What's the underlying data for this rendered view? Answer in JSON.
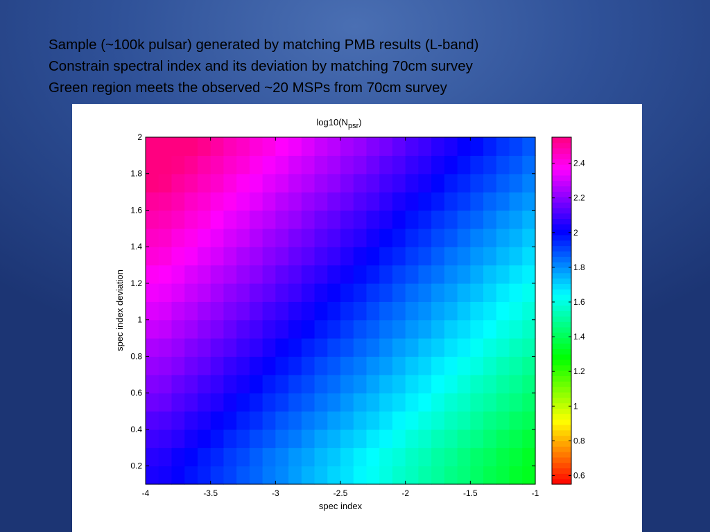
{
  "slide": {
    "bullets": [
      "Sample (~100k pulsar) generated by matching PMB results  (L-band)",
      "Constrain spectral index and its deviation by matching 70cm survey",
      "Green region meets the observed ~20 MSPs from 70cm survey"
    ]
  },
  "chart_data": {
    "type": "heatmap",
    "title": "log10(N",
    "title_subscript": "psr",
    "title_close": ")",
    "xlabel": "spec index",
    "ylabel": "spec index deviation",
    "xlim": [
      -4,
      -1
    ],
    "ylim": [
      0.1,
      2.0
    ],
    "x_ticks": [
      "-4",
      "-3.5",
      "-3",
      "-2.5",
      "-2",
      "-1.5",
      "-1"
    ],
    "x_tick_values": [
      -4,
      -3.5,
      -3,
      -2.5,
      -2,
      -1.5,
      -1
    ],
    "y_ticks": [
      "0.2",
      "0.4",
      "0.6",
      "0.8",
      "1",
      "1.2",
      "1.4",
      "1.6",
      "1.8",
      "2"
    ],
    "y_tick_values": [
      0.2,
      0.4,
      0.6,
      0.8,
      1.0,
      1.2,
      1.4,
      1.6,
      1.8,
      2.0
    ],
    "x_edges": [
      -4.0,
      -3.9,
      -3.8,
      -3.7,
      -3.6,
      -3.5,
      -3.4,
      -3.3,
      -3.2,
      -3.1,
      -3.0,
      -2.9,
      -2.8,
      -2.7,
      -2.6,
      -2.5,
      -2.4,
      -2.3,
      -2.2,
      -2.1,
      -2.0,
      -1.9,
      -1.8,
      -1.7,
      -1.6,
      -1.5,
      -1.4,
      -1.3,
      -1.2,
      -1.1,
      -1.0
    ],
    "y_edges": [
      0.1,
      0.2,
      0.3,
      0.4,
      0.5,
      0.6,
      0.7,
      0.8,
      0.9,
      1.0,
      1.1,
      1.2,
      1.3,
      1.4,
      1.5,
      1.6,
      1.7,
      1.8,
      1.9,
      2.0
    ],
    "z_rows_bottom_to_top": [
      [
        2.04,
        2.03,
        2.01,
        1.98,
        1.96,
        1.93,
        1.91,
        1.88,
        1.86,
        1.83,
        1.81,
        1.78,
        1.75,
        1.73,
        1.7,
        1.68,
        1.65,
        1.63,
        1.6,
        1.57,
        1.55,
        1.52,
        1.5,
        1.47,
        1.45,
        1.42,
        1.39,
        1.37,
        1.34,
        1.32
      ],
      [
        2.06,
        2.05,
        2.02,
        2.0,
        1.97,
        1.95,
        1.92,
        1.9,
        1.87,
        1.84,
        1.82,
        1.79,
        1.77,
        1.74,
        1.72,
        1.69,
        1.66,
        1.64,
        1.61,
        1.59,
        1.56,
        1.54,
        1.51,
        1.49,
        1.46,
        1.43,
        1.41,
        1.38,
        1.36,
        1.33
      ],
      [
        2.09,
        2.08,
        2.06,
        2.03,
        2.01,
        1.98,
        1.95,
        1.93,
        1.9,
        1.88,
        1.85,
        1.83,
        1.8,
        1.77,
        1.75,
        1.72,
        1.7,
        1.67,
        1.65,
        1.62,
        1.59,
        1.57,
        1.54,
        1.52,
        1.49,
        1.47,
        1.44,
        1.41,
        1.39,
        1.36
      ],
      [
        2.12,
        2.11,
        2.09,
        2.06,
        2.04,
        2.01,
        1.99,
        1.96,
        1.94,
        1.91,
        1.88,
        1.86,
        1.83,
        1.81,
        1.78,
        1.76,
        1.73,
        1.71,
        1.68,
        1.65,
        1.63,
        1.6,
        1.58,
        1.55,
        1.53,
        1.5,
        1.47,
        1.45,
        1.42,
        1.4
      ],
      [
        2.16,
        2.15,
        2.12,
        2.1,
        2.07,
        2.05,
        2.02,
        1.99,
        1.97,
        1.94,
        1.92,
        1.89,
        1.87,
        1.84,
        1.82,
        1.79,
        1.76,
        1.74,
        1.71,
        1.69,
        1.66,
        1.64,
        1.61,
        1.58,
        1.56,
        1.53,
        1.51,
        1.48,
        1.46,
        1.43
      ],
      [
        2.19,
        2.18,
        2.15,
        2.13,
        2.1,
        2.08,
        2.05,
        2.03,
        2.0,
        1.97,
        1.95,
        1.92,
        1.9,
        1.87,
        1.85,
        1.82,
        1.8,
        1.77,
        1.74,
        1.72,
        1.69,
        1.67,
        1.64,
        1.62,
        1.59,
        1.56,
        1.54,
        1.51,
        1.49,
        1.46
      ],
      [
        2.22,
        2.21,
        2.19,
        2.16,
        2.14,
        2.11,
        2.08,
        2.06,
        2.03,
        2.01,
        1.98,
        1.96,
        1.93,
        1.9,
        1.88,
        1.85,
        1.83,
        1.8,
        1.78,
        1.75,
        1.72,
        1.7,
        1.67,
        1.65,
        1.62,
        1.6,
        1.57,
        1.54,
        1.52,
        1.49
      ],
      [
        2.25,
        2.24,
        2.22,
        2.19,
        2.17,
        2.14,
        2.12,
        2.09,
        2.07,
        2.04,
        2.01,
        1.99,
        1.96,
        1.94,
        1.91,
        1.89,
        1.86,
        1.84,
        1.81,
        1.78,
        1.76,
        1.73,
        1.71,
        1.68,
        1.66,
        1.63,
        1.6,
        1.58,
        1.55,
        1.53
      ],
      [
        2.29,
        2.28,
        2.25,
        2.23,
        2.2,
        2.18,
        2.15,
        2.12,
        2.1,
        2.07,
        2.05,
        2.02,
        2.0,
        1.97,
        1.95,
        1.92,
        1.89,
        1.87,
        1.84,
        1.82,
        1.79,
        1.77,
        1.74,
        1.71,
        1.69,
        1.66,
        1.64,
        1.61,
        1.59,
        1.56
      ],
      [
        2.32,
        2.31,
        2.28,
        2.26,
        2.23,
        2.21,
        2.18,
        2.16,
        2.13,
        2.1,
        2.08,
        2.05,
        2.03,
        2.0,
        1.98,
        1.95,
        1.93,
        1.9,
        1.87,
        1.85,
        1.82,
        1.8,
        1.77,
        1.75,
        1.72,
        1.69,
        1.67,
        1.64,
        1.62,
        1.59
      ],
      [
        2.35,
        2.34,
        2.32,
        2.29,
        2.27,
        2.24,
        2.21,
        2.19,
        2.16,
        2.14,
        2.11,
        2.09,
        2.06,
        2.03,
        2.01,
        1.98,
        1.96,
        1.93,
        1.91,
        1.88,
        1.85,
        1.83,
        1.8,
        1.78,
        1.75,
        1.73,
        1.7,
        1.67,
        1.65,
        1.62
      ],
      [
        2.38,
        2.37,
        2.35,
        2.32,
        2.3,
        2.27,
        2.25,
        2.22,
        2.2,
        2.17,
        2.14,
        2.12,
        2.09,
        2.07,
        2.04,
        2.02,
        1.99,
        1.97,
        1.94,
        1.91,
        1.89,
        1.86,
        1.84,
        1.81,
        1.79,
        1.76,
        1.73,
        1.71,
        1.68,
        1.66
      ],
      [
        2.42,
        2.41,
        2.38,
        2.36,
        2.33,
        2.31,
        2.28,
        2.25,
        2.23,
        2.2,
        2.18,
        2.15,
        2.13,
        2.1,
        2.08,
        2.05,
        2.02,
        2.0,
        1.97,
        1.95,
        1.92,
        1.9,
        1.87,
        1.84,
        1.82,
        1.79,
        1.77,
        1.74,
        1.72,
        1.69
      ],
      [
        2.45,
        2.44,
        2.41,
        2.39,
        2.36,
        2.34,
        2.31,
        2.29,
        2.26,
        2.23,
        2.21,
        2.18,
        2.16,
        2.13,
        2.11,
        2.08,
        2.06,
        2.03,
        2.0,
        1.98,
        1.95,
        1.93,
        1.9,
        1.88,
        1.85,
        1.82,
        1.8,
        1.77,
        1.75,
        1.72
      ],
      [
        2.48,
        2.47,
        2.45,
        2.42,
        2.4,
        2.37,
        2.34,
        2.32,
        2.29,
        2.27,
        2.24,
        2.22,
        2.19,
        2.16,
        2.14,
        2.11,
        2.09,
        2.06,
        2.04,
        2.01,
        1.98,
        1.96,
        1.93,
        1.91,
        1.88,
        1.86,
        1.83,
        1.8,
        1.78,
        1.75
      ],
      [
        2.51,
        2.5,
        2.48,
        2.45,
        2.43,
        2.4,
        2.38,
        2.35,
        2.33,
        2.3,
        2.27,
        2.25,
        2.22,
        2.2,
        2.17,
        2.15,
        2.12,
        2.1,
        2.07,
        2.04,
        2.02,
        1.99,
        1.97,
        1.94,
        1.92,
        1.89,
        1.86,
        1.84,
        1.81,
        1.79
      ],
      [
        2.55,
        2.54,
        2.51,
        2.49,
        2.46,
        2.44,
        2.41,
        2.38,
        2.36,
        2.33,
        2.31,
        2.28,
        2.26,
        2.23,
        2.21,
        2.18,
        2.15,
        2.13,
        2.1,
        2.08,
        2.05,
        2.03,
        2.0,
        1.97,
        1.95,
        1.92,
        1.9,
        1.87,
        1.85,
        1.82
      ],
      [
        2.58,
        2.57,
        2.54,
        2.52,
        2.49,
        2.47,
        2.44,
        2.42,
        2.39,
        2.36,
        2.34,
        2.31,
        2.29,
        2.26,
        2.24,
        2.21,
        2.19,
        2.16,
        2.13,
        2.11,
        2.08,
        2.06,
        2.03,
        2.01,
        1.98,
        1.95,
        1.93,
        1.9,
        1.88,
        1.85
      ],
      [
        2.61,
        2.6,
        2.58,
        2.55,
        2.53,
        2.5,
        2.47,
        2.45,
        2.42,
        2.4,
        2.37,
        2.35,
        2.32,
        2.29,
        2.27,
        2.24,
        2.22,
        2.19,
        2.17,
        2.14,
        2.11,
        2.09,
        2.06,
        2.04,
        2.01,
        1.99,
        1.96,
        1.93,
        1.91,
        1.88
      ]
    ],
    "colorbar": {
      "range": [
        0.55,
        2.55
      ],
      "ticks": [
        "0.6",
        "0.8",
        "1",
        "1.2",
        "1.4",
        "1.6",
        "1.8",
        "2",
        "2.2",
        "2.4"
      ],
      "tick_values": [
        0.6,
        0.8,
        1.0,
        1.2,
        1.4,
        1.6,
        1.8,
        2.0,
        2.2,
        2.4
      ],
      "colormap": "hsv"
    },
    "grid": false,
    "legend": "colorbar-right"
  }
}
